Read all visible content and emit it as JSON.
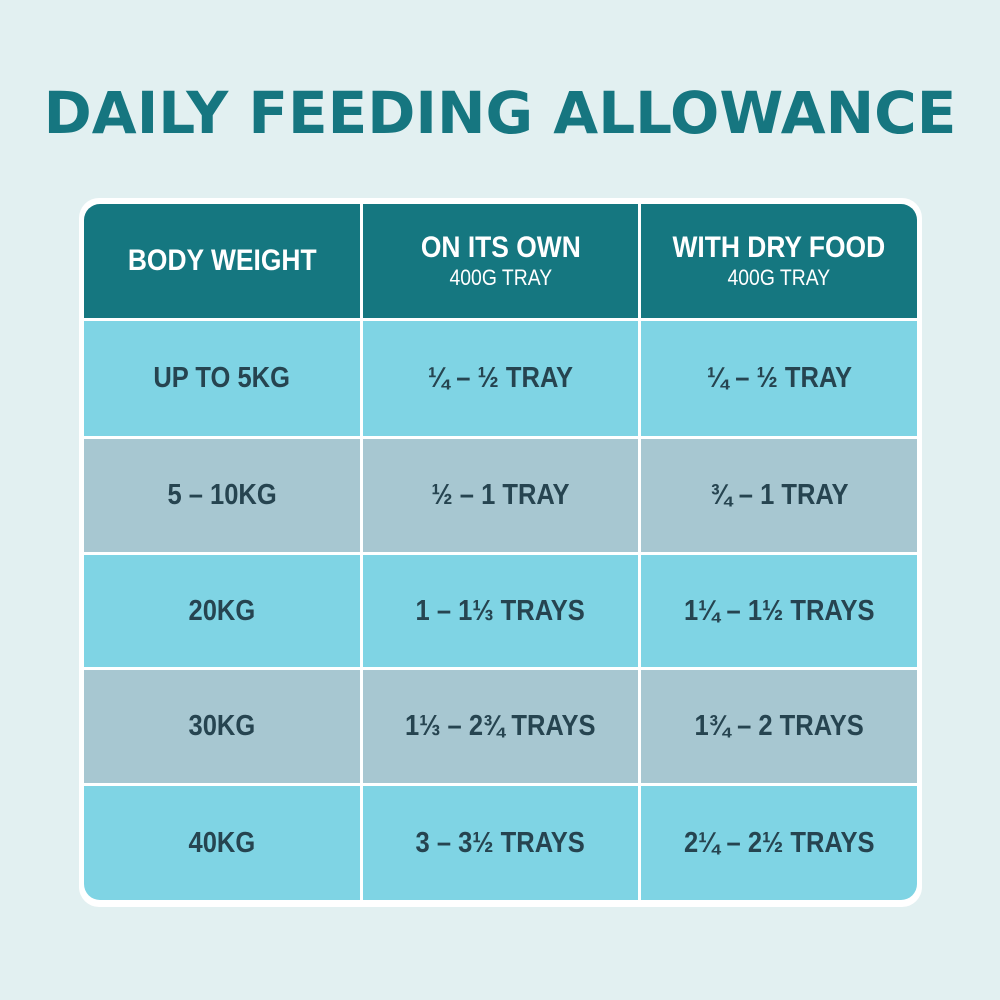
{
  "title": "DAILY FEEDING ALLOWANCE",
  "colors": {
    "background": "#e2f0f1",
    "title": "#167680",
    "header": "#157780",
    "row_light": "#7fd4e4",
    "row_gray": "#a7c7d1",
    "cell_text": "#264450"
  },
  "table": {
    "headers": [
      {
        "main": "BODY WEIGHT",
        "sub": ""
      },
      {
        "main": "ON ITS OWN",
        "sub": "400G TRAY"
      },
      {
        "main": "WITH DRY FOOD",
        "sub": "400G TRAY"
      }
    ],
    "rows": [
      [
        "UP TO 5KG",
        "¼ – ½ TRAY",
        "¼ – ½ TRAY"
      ],
      [
        "5 – 10KG",
        "½ – 1 TRAY",
        "¾ – 1 TRAY"
      ],
      [
        "20KG",
        "1 – 1⅓ TRAYS",
        "1¼ – 1½ TRAYS"
      ],
      [
        "30KG",
        "1⅓ – 2¾ TRAYS",
        "1¾ – 2 TRAYS"
      ],
      [
        "40KG",
        "3 – 3½ TRAYS",
        "2¼ – 2½ TRAYS"
      ]
    ]
  }
}
